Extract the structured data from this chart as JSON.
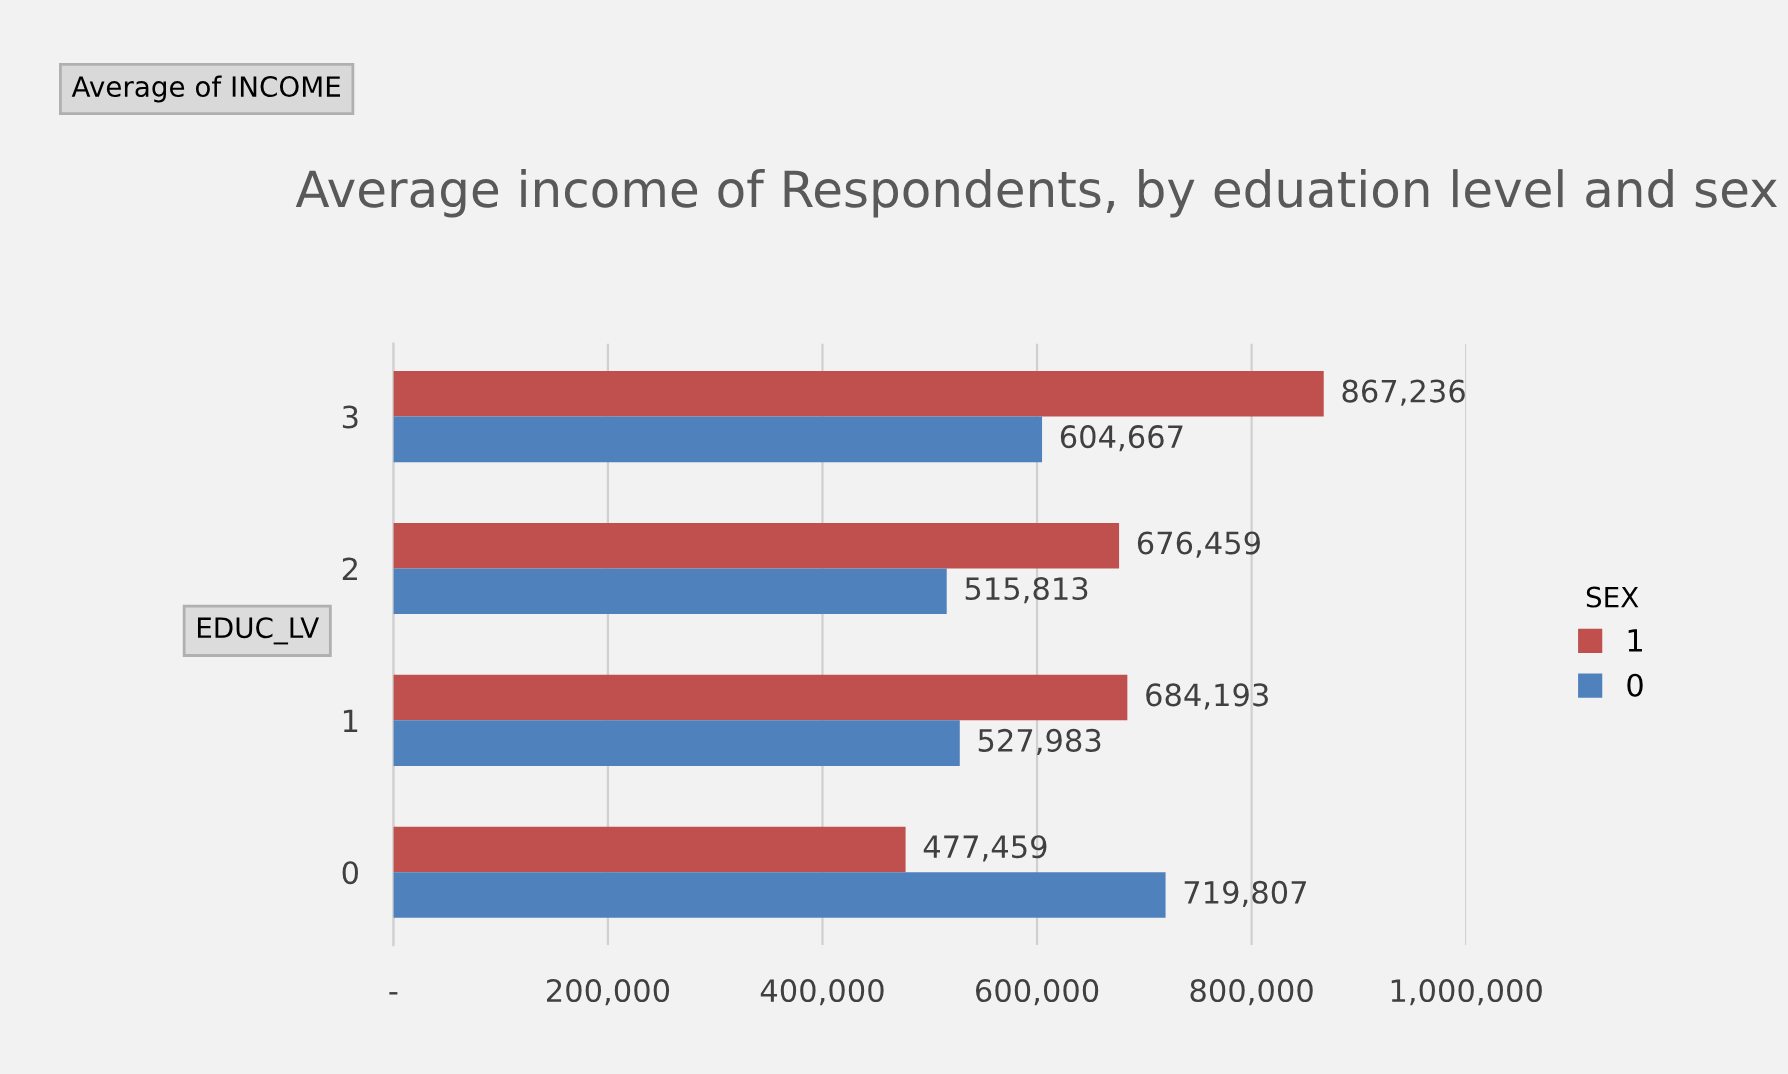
{
  "chart_data": {
    "type": "bar",
    "orientation": "horizontal",
    "title": "Average income of Respondents, by eduation level and sex",
    "ylabel": "EDUC_LV",
    "legend_title": "SEX",
    "annotations": [
      "Average of INCOME"
    ],
    "categories": [
      "3",
      "2",
      "1",
      "0"
    ],
    "series": [
      {
        "name": "1",
        "color": "#c0504d",
        "values": [
          867236,
          676459,
          684193,
          477459
        ],
        "value_labels": [
          "867,236",
          "676,459",
          "684,193",
          "477,459"
        ]
      },
      {
        "name": "0",
        "color": "#4f81bd",
        "values": [
          604667,
          515813,
          527983,
          719807
        ],
        "value_labels": [
          "604,667",
          "515,813",
          "527,983",
          "719,807"
        ]
      }
    ],
    "xlim": [
      0,
      1000000
    ],
    "xticks": [
      {
        "value": 0,
        "label": "-"
      },
      {
        "value": 200000,
        "label": "200,000"
      },
      {
        "value": 400000,
        "label": "400,000"
      },
      {
        "value": 600000,
        "label": "600,000"
      },
      {
        "value": 800000,
        "label": "800,000"
      },
      {
        "value": 1000000,
        "label": "1,000,000"
      }
    ],
    "grid": "x",
    "legend": "right"
  }
}
